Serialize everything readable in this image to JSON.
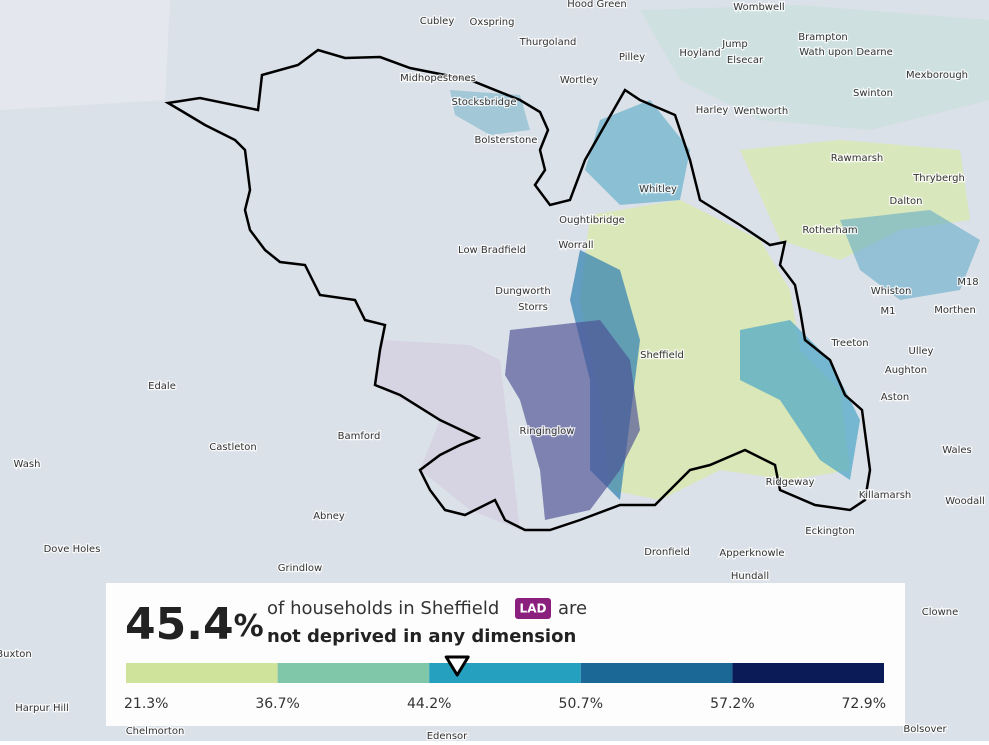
{
  "map": {
    "places": [
      "Hood Green",
      "Wombwell",
      "Cubley",
      "Oxspring",
      "Thurgoland",
      "Jump",
      "Brampton",
      "Hoyland",
      "Elsecar",
      "Wath upon Dearne",
      "Pilley",
      "Mexborough",
      "Wortley",
      "Midhopestones",
      "Stocksbridge",
      "Harley",
      "Wentworth",
      "Swinton",
      "Bolsterstone",
      "Rawmarsh",
      "Thrybergh",
      "Whitley",
      "Dalton",
      "Oughtibridge",
      "Rotherham",
      "Low Bradfield",
      "Worrall",
      "Whiston",
      "M18",
      "Dungworth",
      "Storrs",
      "M1",
      "Morthen",
      "Sheffield",
      "Treeton",
      "Ulley",
      "Edale",
      "Aughton",
      "Aston",
      "Ringinglow",
      "Castleton",
      "Bamford",
      "Wash",
      "Wales",
      "Ridgeway",
      "Killamarsh",
      "Woodall",
      "Abney",
      "Eckington",
      "Dove Holes",
      "Dronfield",
      "Apperknowle",
      "Hundall",
      "Grindlow",
      "Clowne",
      "Buxton",
      "Harpur Hill",
      "Chelmorton",
      "Edensor",
      "Bolsover"
    ]
  },
  "legend": {
    "headline": {
      "value": 45.4,
      "label": "45.4",
      "unit": "%"
    },
    "text_before": "of households in Sheffield",
    "badge": "LAD",
    "text_after": "are",
    "subtitle": "not deprived in any dimension",
    "breaks": [
      {
        "value": 21.3,
        "label": "21.3%"
      },
      {
        "value": 36.7,
        "label": "36.7%"
      },
      {
        "value": 44.2,
        "label": "44.2%"
      },
      {
        "value": 50.7,
        "label": "50.7%"
      },
      {
        "value": 57.2,
        "label": "57.2%"
      },
      {
        "value": 72.9,
        "label": "72.9%"
      }
    ],
    "colors": [
      "#d0e39a",
      "#7fc7a8",
      "#26a0bf",
      "#1b6896",
      "#0b1b57"
    ]
  }
}
